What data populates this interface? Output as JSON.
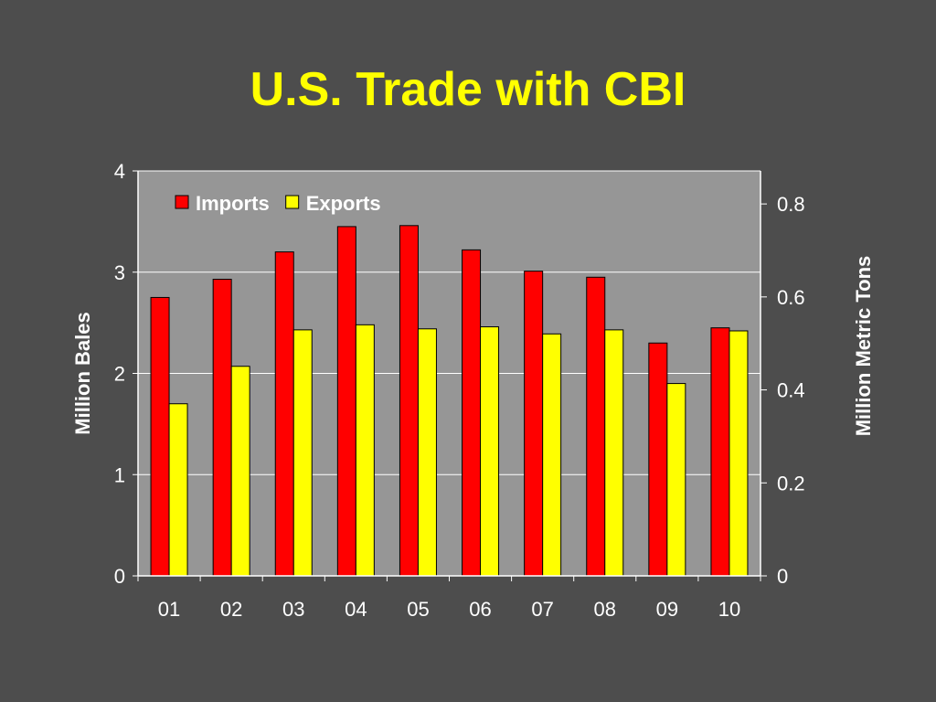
{
  "slide": {
    "title": "U.S. Trade with CBI"
  },
  "chart_data": {
    "type": "bar",
    "title": "U.S. Trade with CBI",
    "categories": [
      "01",
      "02",
      "03",
      "04",
      "05",
      "06",
      "07",
      "08",
      "09",
      "10"
    ],
    "series": [
      {
        "name": "Imports",
        "color": "#ff0000",
        "axis": "left",
        "values": [
          2.75,
          2.93,
          3.2,
          3.45,
          3.46,
          3.22,
          3.01,
          2.95,
          2.3,
          2.45
        ]
      },
      {
        "name": "Exports",
        "color": "#ffff00",
        "axis": "left",
        "values": [
          1.7,
          2.07,
          2.43,
          2.48,
          2.44,
          2.46,
          2.39,
          2.43,
          1.9,
          2.42
        ]
      }
    ],
    "ylabel": "Million Bales",
    "ylim": [
      0,
      4
    ],
    "yticks": [
      0,
      1,
      2,
      3,
      4
    ],
    "y2label": "Million Metric Tons",
    "y2lim": [
      0,
      0.871
    ],
    "y2ticks": [
      {
        "value": 0,
        "label": "0"
      },
      {
        "value": 0.2,
        "label": "0.2"
      },
      {
        "value": 0.4,
        "label": "0.4"
      },
      {
        "value": 0.6,
        "label": "0.6"
      },
      {
        "value": 0.8,
        "label": "0.8"
      }
    ],
    "grid": true,
    "legend_position": "top-left",
    "plot_background": "#969696"
  }
}
